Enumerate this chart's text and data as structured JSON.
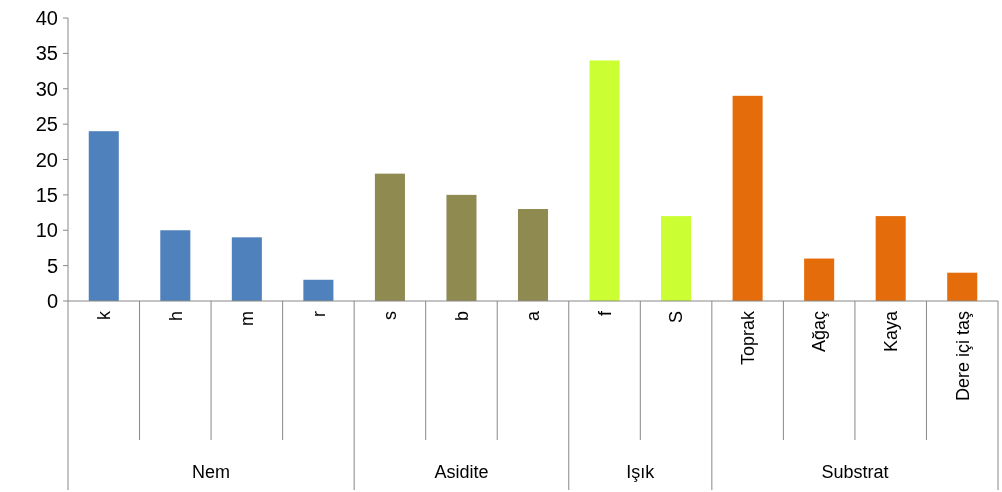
{
  "chart_data": {
    "type": "bar",
    "categories": [
      "k",
      "h",
      "m",
      "r",
      "s",
      "b",
      "a",
      "f",
      "S",
      "Toprak",
      "Ağaç",
      "Kaya",
      "Dere içi taş"
    ],
    "series": [
      {
        "color": "#4f81bd",
        "values": [
          24,
          10,
          9,
          3,
          null,
          null,
          null,
          null,
          null,
          null,
          null,
          null,
          null
        ]
      },
      {
        "color": "#8f8a50",
        "values": [
          null,
          null,
          null,
          null,
          18,
          15,
          13,
          null,
          null,
          null,
          null,
          null,
          null
        ]
      },
      {
        "color": "#ccff33",
        "values": [
          null,
          null,
          null,
          null,
          null,
          null,
          null,
          34,
          12,
          null,
          null,
          null,
          null
        ]
      },
      {
        "color": "#e46c0a",
        "values": [
          null,
          null,
          null,
          null,
          null,
          null,
          null,
          null,
          null,
          29,
          6,
          12,
          4
        ]
      }
    ],
    "annotations": [
      "Nem",
      "Asidite",
      "Işık",
      "Substrat"
    ],
    "ylim": [
      0,
      40
    ],
    "yticks": [
      0,
      5,
      10,
      15,
      20,
      25,
      30,
      35,
      40
    ],
    "grid": false
  }
}
